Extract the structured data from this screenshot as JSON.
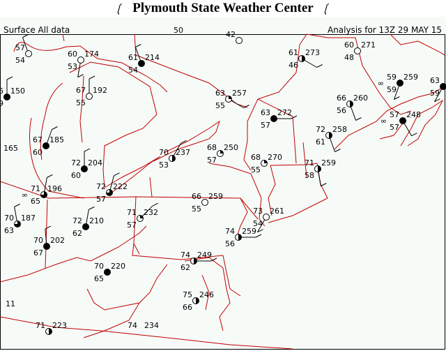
{
  "title": "Plymouth State Weather Center",
  "product": "Surface All data",
  "analysis_time": "Analysis for 13Z 29 MAY 15",
  "colors": {
    "boundaries": "#c00000",
    "stations": "#000000",
    "background": "#f7fbf8"
  },
  "stations": [
    {
      "t": "57",
      "td": "54",
      "p": "",
      "cover": 0
    },
    {
      "t": "60",
      "td": "53",
      "p": "174",
      "cover": 0
    },
    {
      "t": "61",
      "td": "54",
      "p": "214",
      "cover": 1
    },
    {
      "t": "6",
      "td": "9",
      "p": "150",
      "cover": 1
    },
    {
      "t": "67",
      "td": "55",
      "p": "192",
      "cover": 0
    },
    {
      "t": "63",
      "td": "55",
      "p": "257",
      "cover": 0.25
    },
    {
      "t": "61",
      "td": "46",
      "p": "273",
      "cover": 0.5
    },
    {
      "t": "60",
      "td": "48",
      "p": "271",
      "cover": 0
    },
    {
      "t": "59",
      "td": "59",
      "p": "259",
      "cover": 1,
      "wx": "∞"
    },
    {
      "t": "63",
      "td": "59",
      "p": "",
      "cover": 1
    },
    {
      "t": "66",
      "td": "56",
      "p": "260",
      "cover": 0.5
    },
    {
      "t": "63",
      "td": "57",
      "p": "272",
      "cover": 1
    },
    {
      "t": "72",
      "td": "61",
      "p": "258",
      "cover": 0.5
    },
    {
      "t": "57",
      "td": "57",
      "p": "248",
      "cover": 1,
      "wx": "∞"
    },
    {
      "t": "67",
      "td": "60",
      "p": "185",
      "cover": 1
    },
    {
      "t": "",
      "td": "",
      "p": "165",
      "cover": null
    },
    {
      "t": "72",
      "td": "60",
      "p": "204",
      "cover": 1
    },
    {
      "t": "70",
      "td": "53",
      "p": "237",
      "cover": 0.5
    },
    {
      "t": "68",
      "td": "57",
      "p": "250",
      "cover": 0.25
    },
    {
      "t": "68",
      "td": "55",
      "p": "270",
      "cover": 0.25
    },
    {
      "t": "71",
      "td": "58",
      "p": "259",
      "cover": 0.5
    },
    {
      "t": "71",
      "td": "65",
      "p": "196",
      "cover": 0.75,
      "wx": "∞"
    },
    {
      "t": "72",
      "td": "57",
      "p": "222",
      "cover": 0.75
    },
    {
      "t": "66",
      "td": "55",
      "p": "259",
      "cover": 0
    },
    {
      "t": "71",
      "td": "57",
      "p": "232",
      "cover": 0.25
    },
    {
      "t": "73",
      "td": "54",
      "p": "261",
      "cover": 0
    },
    {
      "t": "70",
      "td": "63",
      "p": "187",
      "cover": 0.75
    },
    {
      "t": "72",
      "td": "62",
      "p": "210",
      "cover": 1
    },
    {
      "t": "74",
      "td": "56",
      "p": "259",
      "cover": 0.5
    },
    {
      "t": "70",
      "td": "67",
      "p": "202",
      "cover": 1
    },
    {
      "t": "74",
      "td": "62",
      "p": "249",
      "cover": 0.5
    },
    {
      "t": "70",
      "td": "65",
      "p": "220",
      "cover": 1
    },
    {
      "t": "75",
      "td": "66",
      "p": "246",
      "cover": 0.5
    },
    {
      "t": "71",
      "td": "",
      "p": "223",
      "cover": 0.5
    },
    {
      "t": "74",
      "td": "",
      "p": "234",
      "cover": null
    },
    {
      "t": "",
      "td": "",
      "p": "11",
      "cover": null
    },
    {
      "t": "50",
      "td": "",
      "p": "",
      "cover": null
    },
    {
      "t": "42",
      "td": "",
      "p": "",
      "cover": 0
    }
  ]
}
